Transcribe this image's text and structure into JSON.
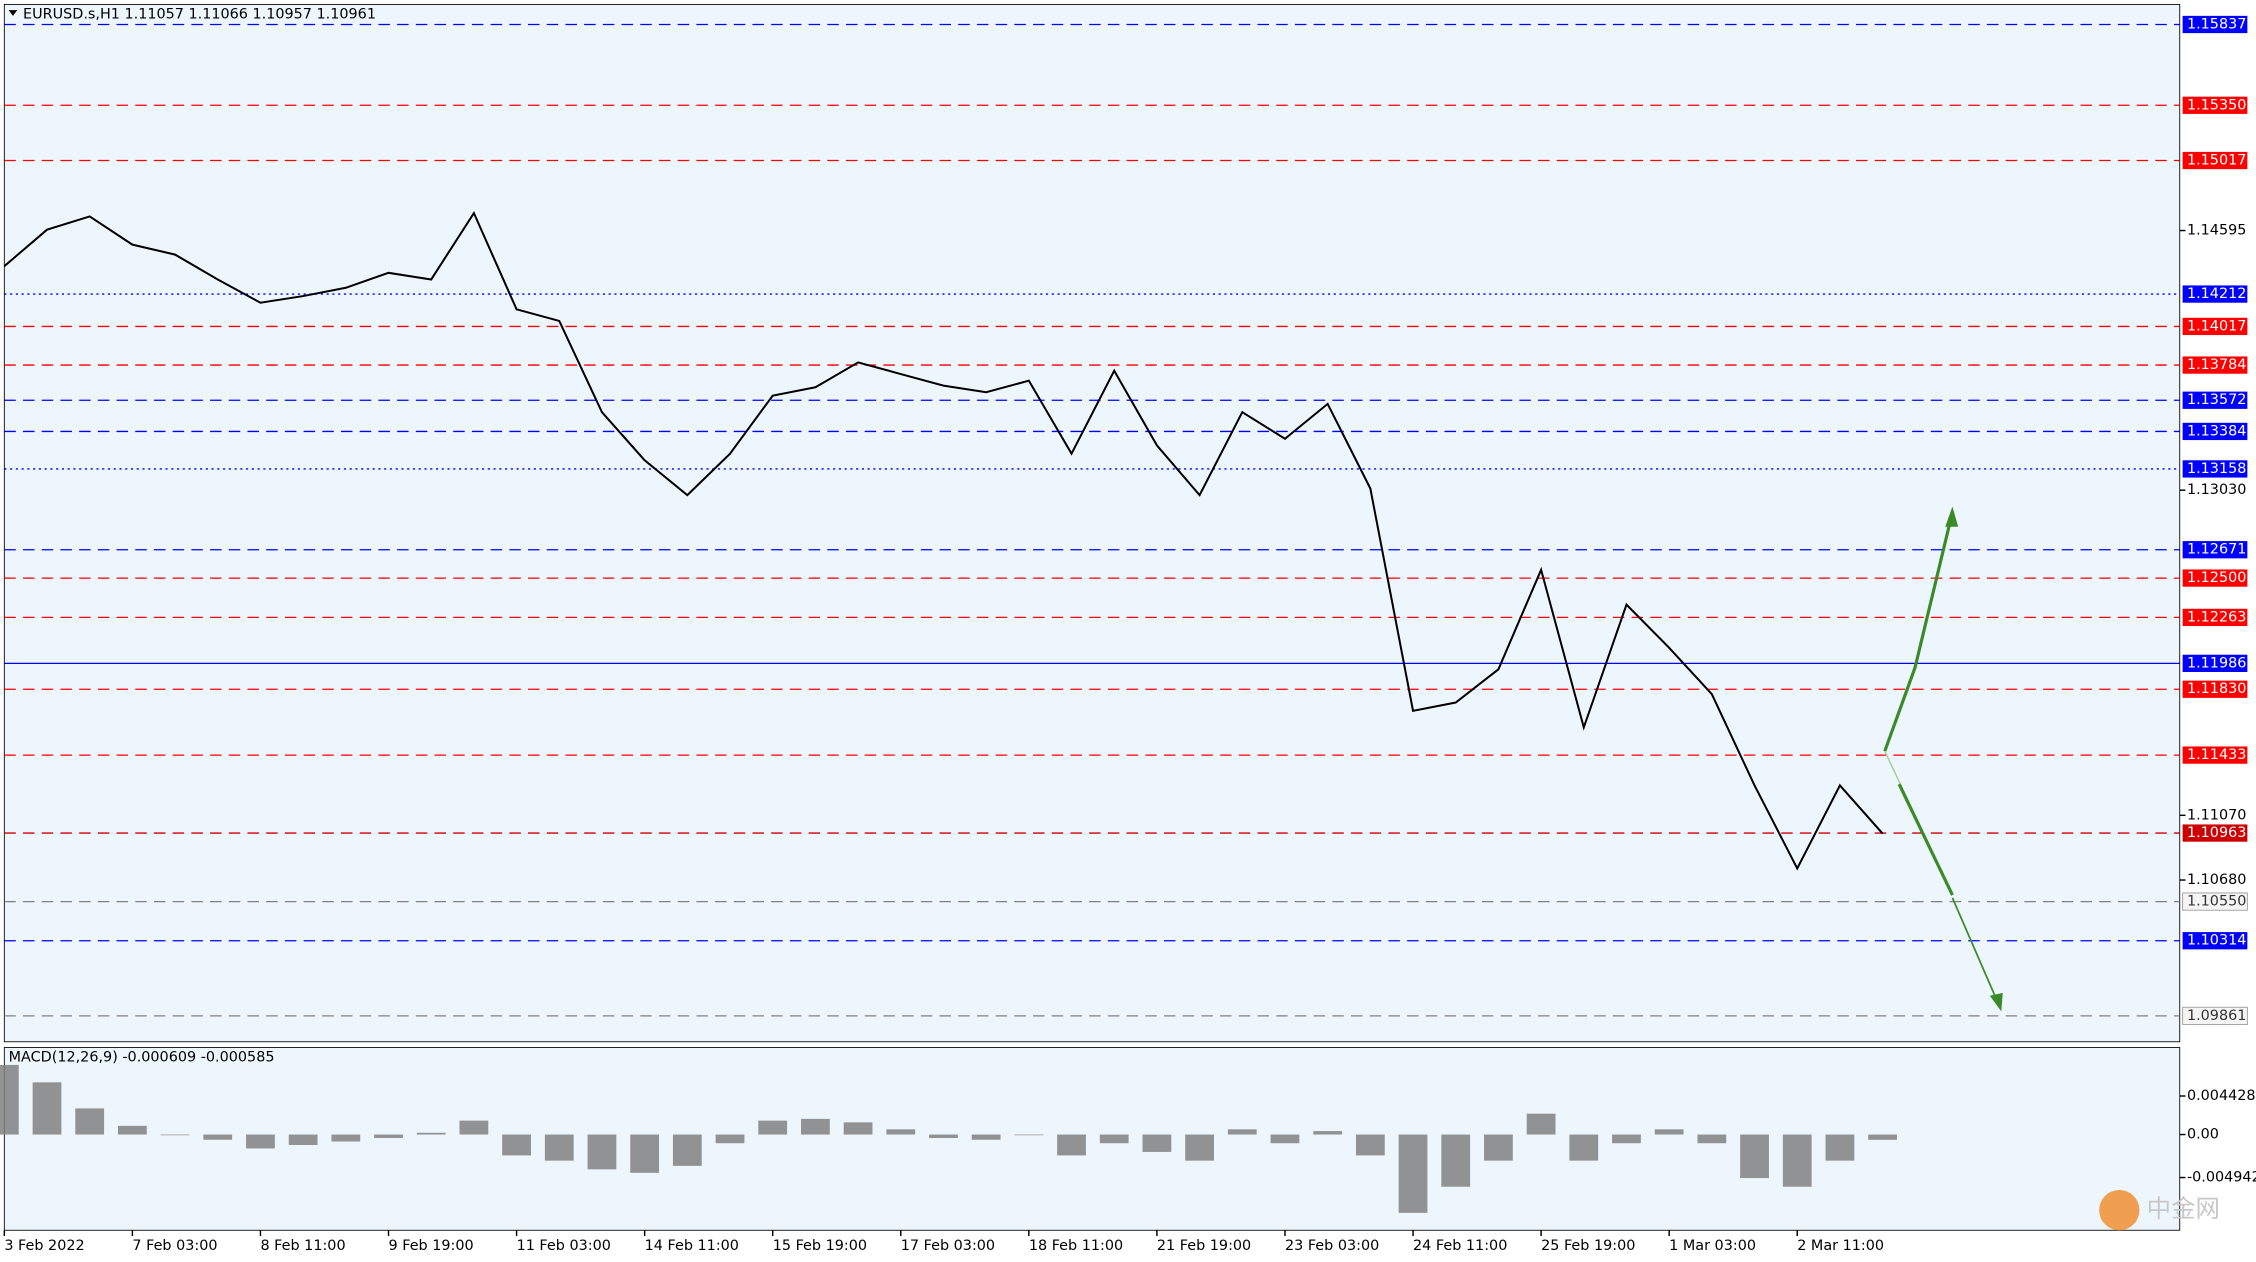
{
  "chart_data": {
    "type": "line",
    "title": "EURUSD.s,H1  1.11057 1.11066 1.10957 1.10961",
    "categories": [
      "3 Feb 2022",
      null,
      null,
      "7 Feb 03:00",
      null,
      null,
      "8 Feb 11:00",
      null,
      null,
      "9 Feb 19:00",
      null,
      null,
      "11 Feb 03:00",
      null,
      null,
      "14 Feb 11:00",
      null,
      null,
      "15 Feb 19:00",
      null,
      null,
      "17 Feb 03:00",
      null,
      null,
      "18 Feb 11:00",
      null,
      null,
      "21 Feb 19:00",
      null,
      null,
      "23 Feb 03:00",
      null,
      null,
      "24 Feb 11:00",
      null,
      null,
      "25 Feb 19:00",
      null,
      null,
      "1 Mar 03:00",
      null,
      null,
      "2 Mar 11:00",
      null,
      null
    ],
    "series": [
      {
        "color": "#000000",
        "values": [
          1.1438,
          1.146,
          1.1468,
          1.1451,
          1.1445,
          1.143,
          1.1416,
          1.142,
          1.1425,
          1.1434,
          1.143,
          1.147,
          1.1412,
          1.1405,
          1.135,
          1.1321,
          1.13,
          1.1325,
          1.136,
          1.1365,
          1.138,
          1.1373,
          1.1366,
          1.1362,
          1.1369,
          1.1325,
          1.1375,
          1.133,
          1.13,
          1.135,
          1.1334,
          1.1355,
          1.1304,
          1.117,
          1.1175,
          1.1195,
          1.1255,
          1.116,
          1.1234,
          1.1208,
          1.118,
          1.1125,
          1.1075,
          1.1125,
          1.1096
        ]
      }
    ],
    "ylim": [
      1.09705,
      1.15958
    ],
    "yticks": [
      1.14595,
      {
        "value": 1.1303,
        "label": "1.13030"
      },
      {
        "value": 1.1107,
        "label": "1.11070"
      },
      {
        "value": 1.1068,
        "label": "1.10680"
      }
    ],
    "levels": [
      {
        "value": 1.15837,
        "color": "#0000ff",
        "style": "dash"
      },
      {
        "value": 1.1535,
        "label": "1.15350",
        "color": "#ff0000",
        "style": "dash"
      },
      {
        "value": 1.15017,
        "color": "#ff0000",
        "style": "dash"
      },
      {
        "value": 1.14212,
        "color": "#0000ff",
        "style": "dot"
      },
      {
        "value": 1.14017,
        "color": "#ff0000",
        "style": "dash"
      },
      {
        "value": 1.13784,
        "color": "#ff0000",
        "style": "dash"
      },
      {
        "value": 1.13572,
        "color": "#0000ff",
        "style": "dash"
      },
      {
        "value": 1.13384,
        "color": "#0000ff",
        "style": "dash"
      },
      {
        "value": 1.13158,
        "color": "#0000ff",
        "style": "dot"
      },
      {
        "value": 1.12671,
        "color": "#0000ff",
        "style": "dash"
      },
      {
        "value": 1.125,
        "label": "1.12500",
        "color": "#ff0000",
        "style": "dash"
      },
      {
        "value": 1.12263,
        "color": "#ff0000",
        "style": "dash"
      },
      {
        "value": 1.11986,
        "color": "#0000ff",
        "style": "solid"
      },
      {
        "value": 1.1183,
        "label": "1.11830",
        "color": "#ff0000",
        "style": "dash"
      },
      {
        "value": 1.11433,
        "color": "#ff0000",
        "style": "dash"
      },
      {
        "value": 1.10963,
        "color": "#cc0000",
        "style": "dash"
      },
      {
        "value": 1.1055,
        "label": "1.10550",
        "color": "#808080",
        "style": "dash"
      },
      {
        "value": 1.10314,
        "color": "#0000ff",
        "style": "dash"
      },
      {
        "value": 1.09861,
        "color": "#808080",
        "style": "dash"
      }
    ],
    "macd": {
      "type": "bar",
      "title": "MACD(12,26,9) -0.000609 -0.000585",
      "color": "#808080",
      "values": [
        0.008,
        0.006,
        0.003,
        0.001,
        0.0,
        -0.0006,
        -0.0016,
        -0.0012,
        -0.0008,
        -0.0004,
        0.0002,
        0.0016,
        -0.0024,
        -0.003,
        -0.004,
        -0.0044,
        -0.0036,
        -0.001,
        0.0016,
        0.0018,
        0.0014,
        0.0006,
        -0.0004,
        -0.0006,
        0.0,
        -0.0024,
        -0.001,
        -0.002,
        -0.003,
        0.0006,
        -0.001,
        0.0004,
        -0.0024,
        -0.009,
        -0.006,
        -0.003,
        0.0024,
        -0.003,
        -0.001,
        0.0006,
        -0.001,
        -0.005,
        -0.006,
        -0.003,
        -0.000609
      ],
      "ylim": [
        -0.011,
        0.01
      ],
      "yticks": [
        0.004428,
        {
          "value": 0,
          "label": "0.00"
        },
        -0.004942
      ]
    },
    "watermark": "中金网"
  }
}
